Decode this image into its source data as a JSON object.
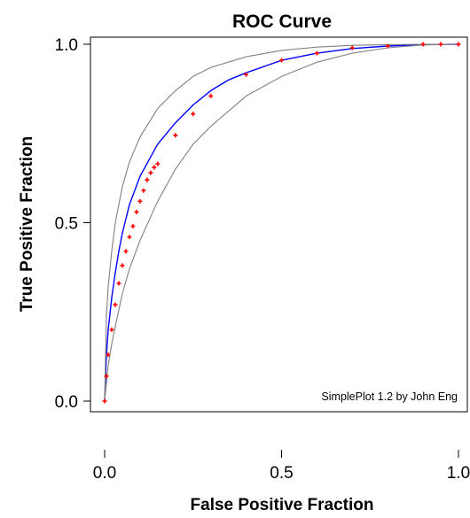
{
  "chart_data": {
    "type": "line",
    "title": "ROC Curve",
    "xlabel": "False Positive Fraction",
    "ylabel": "True Positive Fraction",
    "xlim": [
      0,
      1
    ],
    "ylim": [
      0,
      1
    ],
    "x_ticks": [
      "0.0",
      "0.5",
      "1.0"
    ],
    "y_ticks": [
      "0.0",
      "0.5",
      "1.0"
    ],
    "grid": false,
    "legend": "none",
    "annotation": "SimplePlot 1.2 by John Eng",
    "series": [
      {
        "role": "fitted",
        "color": "#0000ff",
        "x": [
          0,
          0.005,
          0.01,
          0.02,
          0.03,
          0.04,
          0.05,
          0.07,
          0.1,
          0.15,
          0.2,
          0.25,
          0.3,
          0.35,
          0.4,
          0.5,
          0.6,
          0.7,
          0.8,
          0.9,
          1.0
        ],
        "y": [
          0,
          0.13,
          0.2,
          0.29,
          0.36,
          0.42,
          0.47,
          0.55,
          0.63,
          0.72,
          0.78,
          0.83,
          0.87,
          0.9,
          0.92,
          0.955,
          0.975,
          0.988,
          0.995,
          0.999,
          1.0
        ]
      },
      {
        "role": "upper-bound",
        "color": "#808080",
        "x": [
          0,
          0.005,
          0.01,
          0.02,
          0.03,
          0.05,
          0.07,
          0.1,
          0.15,
          0.2,
          0.25,
          0.3,
          0.4,
          0.5,
          0.6,
          0.7,
          0.8,
          0.9,
          1.0
        ],
        "y": [
          0,
          0.24,
          0.32,
          0.42,
          0.5,
          0.6,
          0.67,
          0.74,
          0.82,
          0.87,
          0.91,
          0.935,
          0.965,
          0.983,
          0.992,
          0.997,
          0.999,
          1.0,
          1.0
        ]
      },
      {
        "role": "lower-bound",
        "color": "#808080",
        "x": [
          0,
          0.01,
          0.02,
          0.03,
          0.05,
          0.07,
          0.1,
          0.15,
          0.2,
          0.25,
          0.3,
          0.4,
          0.5,
          0.6,
          0.7,
          0.8,
          0.9,
          1.0
        ],
        "y": [
          0,
          0.1,
          0.16,
          0.21,
          0.3,
          0.37,
          0.45,
          0.56,
          0.65,
          0.72,
          0.77,
          0.855,
          0.91,
          0.95,
          0.975,
          0.99,
          0.998,
          1.0
        ]
      }
    ],
    "points": {
      "color": "#ff0000",
      "x": [
        0,
        0.005,
        0.01,
        0.02,
        0.03,
        0.04,
        0.05,
        0.06,
        0.07,
        0.08,
        0.09,
        0.1,
        0.11,
        0.12,
        0.13,
        0.14,
        0.15,
        0.2,
        0.25,
        0.3,
        0.4,
        0.5,
        0.6,
        0.7,
        0.8,
        0.9,
        0.95,
        1.0
      ],
      "y": [
        0,
        0.07,
        0.13,
        0.2,
        0.27,
        0.33,
        0.38,
        0.42,
        0.46,
        0.49,
        0.53,
        0.56,
        0.59,
        0.62,
        0.64,
        0.655,
        0.665,
        0.745,
        0.805,
        0.855,
        0.915,
        0.955,
        0.975,
        0.99,
        0.995,
        1.0,
        1.0,
        1.0
      ]
    }
  }
}
